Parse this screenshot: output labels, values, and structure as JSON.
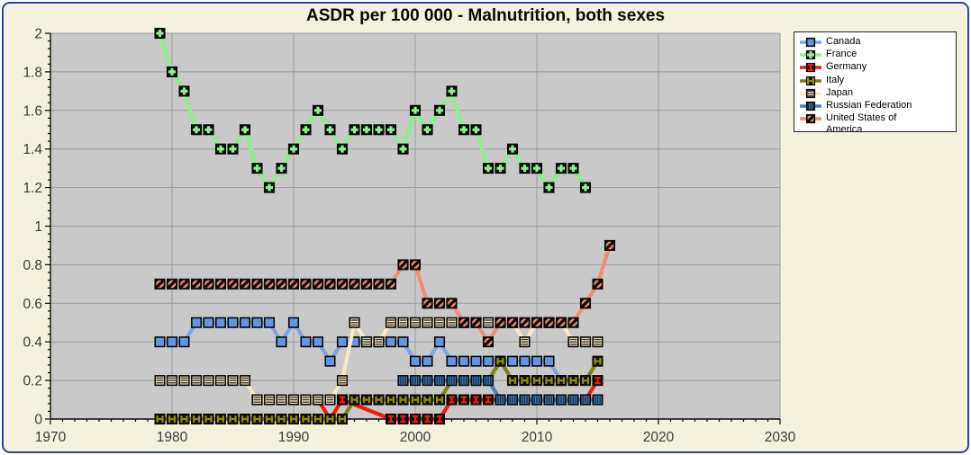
{
  "title": "ASDR per 100 000 - Malnutrition, both sexes",
  "window": {
    "background": "#F4F2DC",
    "border_color": "#2F3EB0",
    "plot_background": "#C9C9C9",
    "grid_color": "#9B9B9B",
    "axis_color": "#0a0a0a",
    "tick_label_color": "#3C3C3C"
  },
  "legend": {
    "position": "top-right",
    "items": [
      {
        "key": "canada",
        "label": "Canada"
      },
      {
        "key": "france",
        "label": "France"
      },
      {
        "key": "germany",
        "label": "Germany"
      },
      {
        "key": "italy",
        "label": "Italy"
      },
      {
        "key": "japan",
        "label": "Japan"
      },
      {
        "key": "russia",
        "label": "Russian Federation"
      },
      {
        "key": "usa",
        "label": "United States of America"
      }
    ]
  },
  "axes": {
    "x_tick_labels": [
      "1970",
      "1980",
      "1990",
      "2000",
      "2010",
      "2020",
      "2030"
    ],
    "y_tick_labels": [
      "0",
      "0.2",
      "0.4",
      "0.6",
      "0.8",
      "1",
      "1.2",
      "1.4",
      "1.6",
      "1.8",
      "2"
    ]
  },
  "chart_data": {
    "type": "line",
    "title": "ASDR per 100 000 - Malnutrition, both sexes",
    "xlabel": "",
    "ylabel": "",
    "x_range": [
      1970,
      2030
    ],
    "y_range": [
      0,
      2
    ],
    "y_major_step": 0.2,
    "grid": true,
    "legend_position": "top-right",
    "series": [
      {
        "name": "Canada",
        "key": "canada",
        "marker": "blue-square",
        "line_color": "#7BA4E2",
        "fill_color": "#6495E2",
        "accent_color": "#6495E2",
        "start_year": 1979,
        "values": [
          0.4,
          0.4,
          0.4,
          0.5,
          0.5,
          0.5,
          0.5,
          0.5,
          0.5,
          0.5,
          0.4,
          0.5,
          0.4,
          0.4,
          0.3,
          0.4,
          0.4,
          0.4,
          0.4,
          0.4,
          0.4,
          0.3,
          0.3,
          0.4,
          0.3,
          0.3,
          0.3,
          0.3,
          0.3,
          0.3,
          0.3,
          0.3,
          0.3,
          0.2
        ]
      },
      {
        "name": "France",
        "key": "france",
        "marker": "green-cross",
        "line_color": "#96E896",
        "fill_color": "#0a0a0a",
        "accent_color": "#90EE90",
        "start_year": 1979,
        "values": [
          2.0,
          1.8,
          1.7,
          1.5,
          1.5,
          1.4,
          1.4,
          1.5,
          1.3,
          1.2,
          1.3,
          1.4,
          1.5,
          1.6,
          1.5,
          1.4,
          1.5,
          1.5,
          1.5,
          1.5,
          1.4,
          1.6,
          1.5,
          1.6,
          1.7,
          1.5,
          1.5,
          1.3,
          1.3,
          1.4,
          1.3,
          1.3,
          1.2,
          1.3,
          1.3,
          1.2
        ]
      },
      {
        "name": "Germany",
        "key": "germany",
        "marker": "red-ibeam",
        "line_color": "#ED1C0D",
        "fill_color": "#0a0a0a",
        "accent_color": "#ED1C0D",
        "start_year": 1992,
        "values": [
          0.1,
          0.0,
          0.1,
          null,
          null,
          null,
          0.0,
          0.0,
          0.0,
          0.0,
          0.0,
          0.1,
          0.1,
          0.1,
          0.1,
          0.1,
          0.1,
          0.1,
          0.1,
          0.1,
          0.1,
          0.1,
          0.1,
          0.2
        ]
      },
      {
        "name": "Italy",
        "key": "italy",
        "marker": "olive-h",
        "line_color": "#80800A",
        "fill_color": "#0a0a0a",
        "accent_color": "#919100",
        "start_year": 1979,
        "values": [
          0.0,
          0.0,
          0.0,
          0.0,
          0.0,
          0.0,
          0.0,
          0.0,
          0.0,
          0.0,
          0.0,
          0.0,
          0.0,
          0.0,
          0.0,
          0.0,
          0.1,
          0.1,
          0.1,
          0.1,
          0.1,
          0.1,
          0.1,
          0.1,
          0.2,
          0.2,
          0.2,
          0.2,
          0.3,
          0.2,
          0.2,
          0.2,
          0.2,
          0.2,
          0.2,
          0.2,
          0.3
        ]
      },
      {
        "name": "Japan",
        "key": "japan",
        "marker": "cream-hlines",
        "line_color": "#F9E7C5",
        "fill_color": "#F7E3BC",
        "accent_color": "#3A3A3A",
        "start_year": 1979,
        "values": [
          0.2,
          0.2,
          0.2,
          0.2,
          0.2,
          0.2,
          0.2,
          0.2,
          0.1,
          0.1,
          0.1,
          0.1,
          0.1,
          0.1,
          0.1,
          0.2,
          0.5,
          0.4,
          0.4,
          0.5,
          0.5,
          0.5,
          0.5,
          0.5,
          0.5,
          0.5,
          0.5,
          0.5,
          0.5,
          0.5,
          0.4,
          0.5,
          0.5,
          0.5,
          0.4,
          0.4,
          0.4
        ]
      },
      {
        "name": "Russian Federation",
        "key": "russia",
        "marker": "steel-vlines",
        "line_color": "#4A7FB5",
        "fill_color": "#3E74AC",
        "accent_color": "#16314E",
        "start_year": 1999,
        "values": [
          0.2,
          0.2,
          0.2,
          0.2,
          0.2,
          0.2,
          0.2,
          0.2,
          0.1,
          0.1,
          0.1,
          0.1,
          0.1,
          0.1,
          0.1,
          0.1,
          0.1
        ]
      },
      {
        "name": "United States of America",
        "key": "usa",
        "marker": "salmon-diagonal",
        "line_color": "#F28C76",
        "fill_color": "#0a0a0a",
        "accent_color": "#F28C76",
        "start_year": 1979,
        "values": [
          0.7,
          0.7,
          0.7,
          0.7,
          0.7,
          0.7,
          0.7,
          0.7,
          0.7,
          0.7,
          0.7,
          0.7,
          0.7,
          0.7,
          0.7,
          0.7,
          0.7,
          0.7,
          0.7,
          0.7,
          0.8,
          0.8,
          0.6,
          0.6,
          0.6,
          0.5,
          0.5,
          0.4,
          0.5,
          0.5,
          0.5,
          0.5,
          0.5,
          0.5,
          0.5,
          0.6,
          0.7,
          0.9
        ]
      }
    ]
  }
}
